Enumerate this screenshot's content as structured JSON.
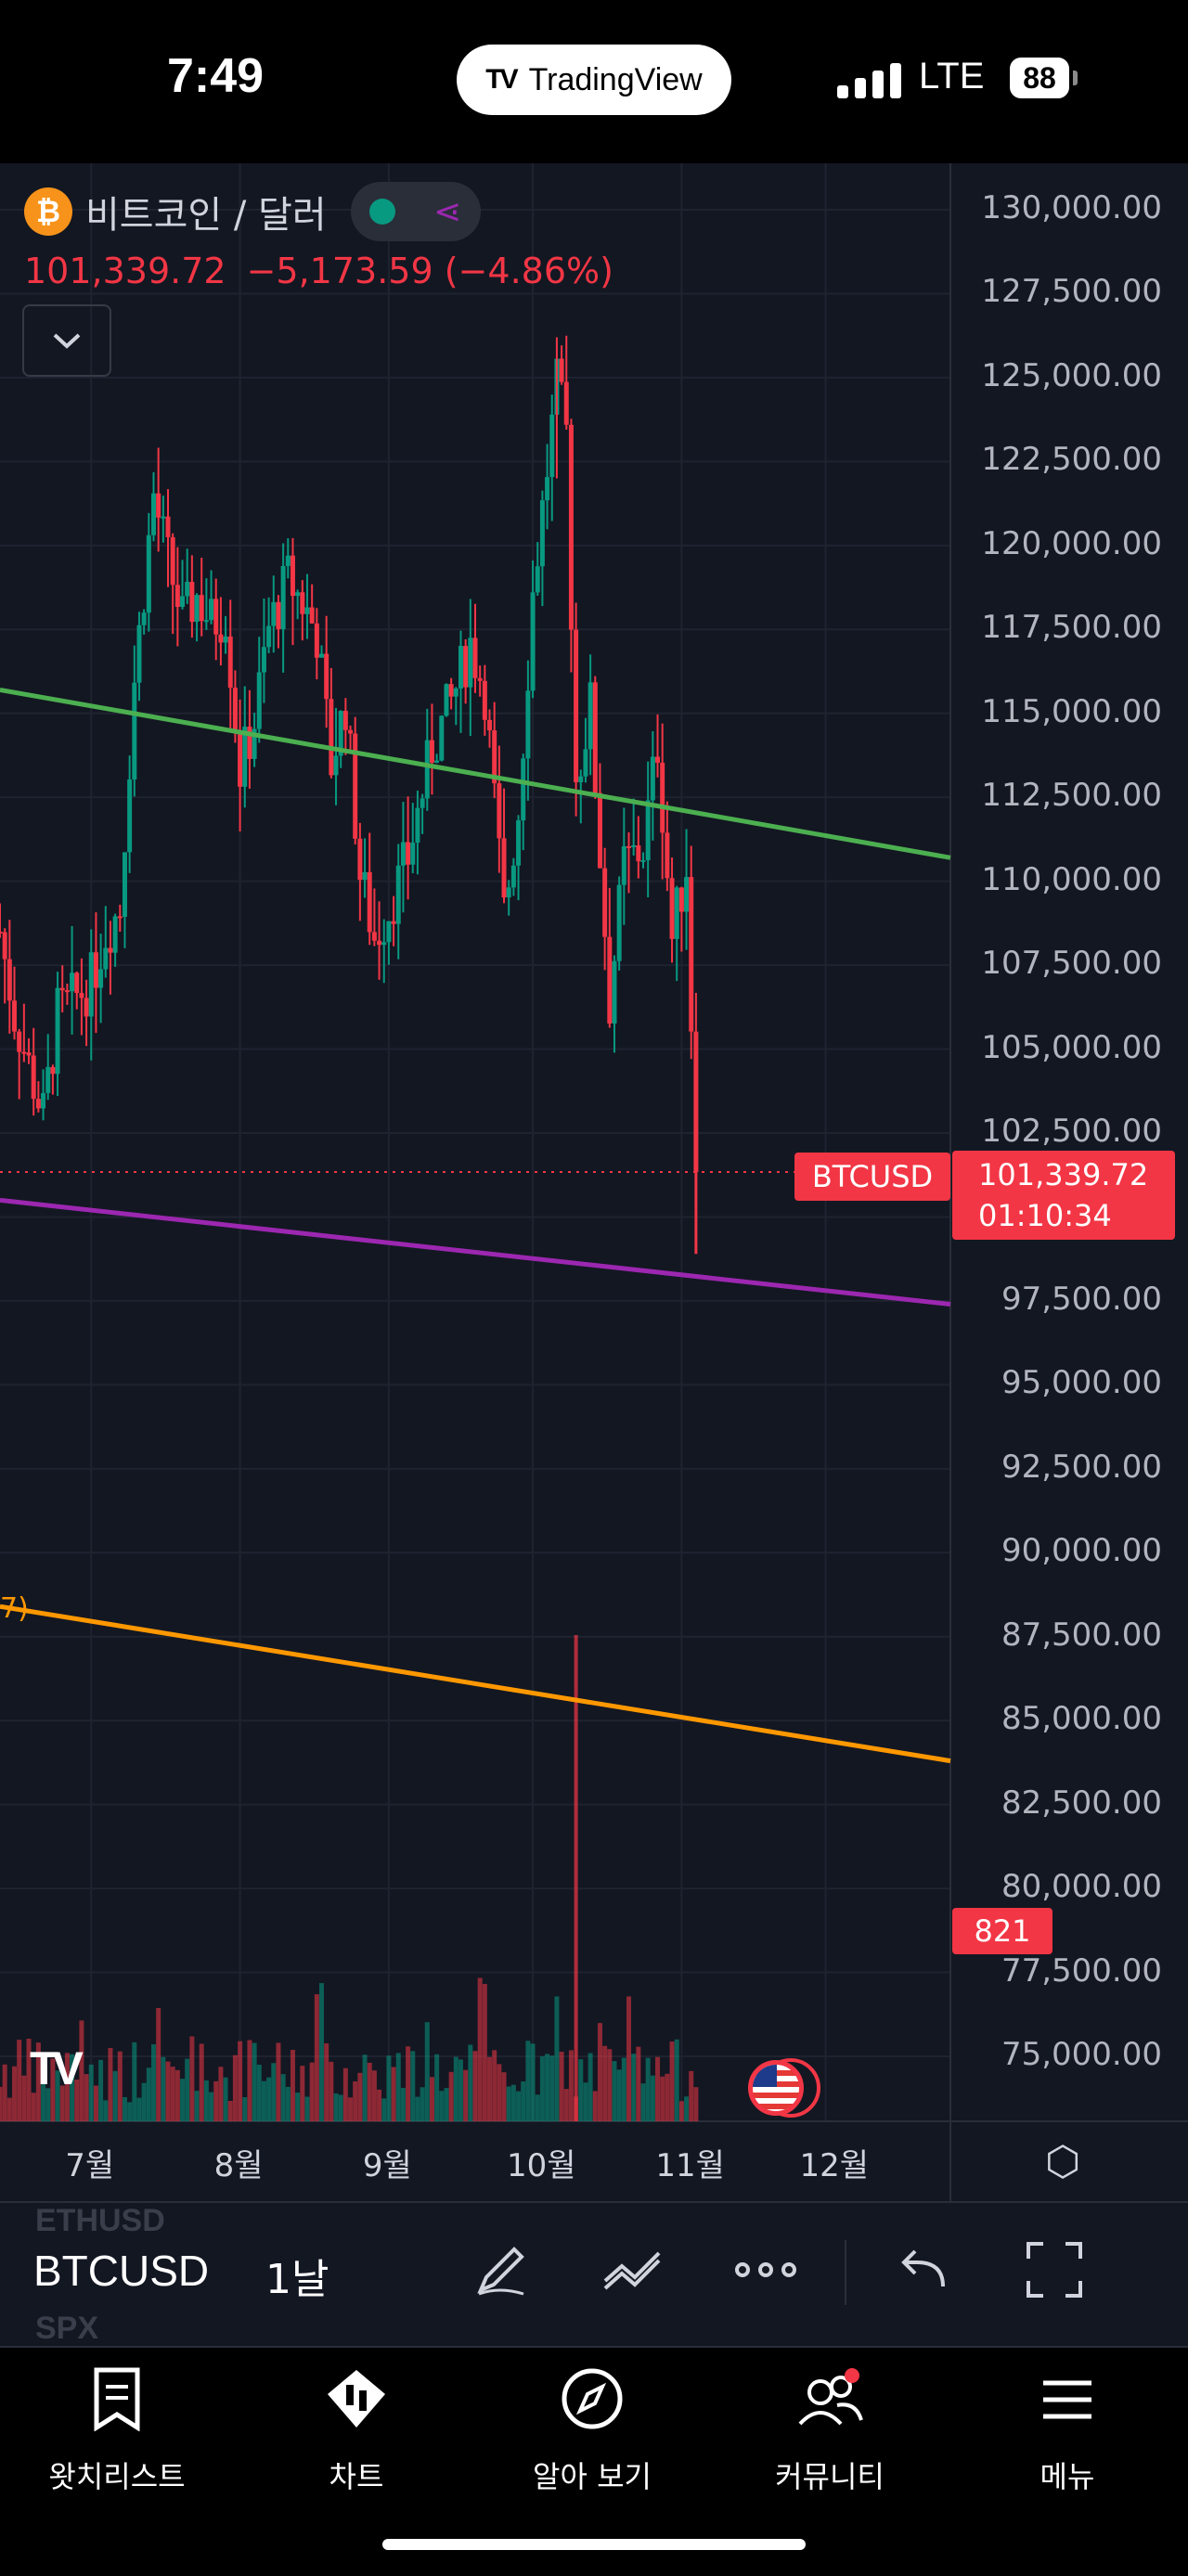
{
  "status_bar": {
    "time": "7:49",
    "app_pill": "TradingView",
    "app_logo": "TV",
    "network": "LTE",
    "battery": "88"
  },
  "legend": {
    "icon": "₿",
    "title": "비트코인 / 달러",
    "last": "101,339.72",
    "change": "−5,173.59",
    "change_pct": "(−4.86%)",
    "collapse_icon": "chevron-down-icon"
  },
  "price_axis": {
    "labels": [
      "130,000.00",
      "127,500.00",
      "125,000.00",
      "122,500.00",
      "120,000.00",
      "117,500.00",
      "115,000.00",
      "112,500.00",
      "110,000.00",
      "107,500.00",
      "105,000.00",
      "102,500.00",
      "97,500.00",
      "95,000.00",
      "92,500.00",
      "90,000.00",
      "87,500.00",
      "85,000.00",
      "82,500.00",
      "80,000.00",
      "77,500.00",
      "75,000.00"
    ]
  },
  "current_price": {
    "symbol": "BTCUSD",
    "price": "101,339.72",
    "countdown": "01:10:34"
  },
  "volume_tag": "821",
  "ma_label": "7)",
  "time_axis": [
    "7월",
    "8월",
    "9월",
    "10월",
    "11월",
    "12월"
  ],
  "chart_data": {
    "type": "candlestick",
    "symbol": "BTCUSD",
    "interval": "1날",
    "ylim": [
      73500,
      131000
    ],
    "x_range": [
      "2025-06-12",
      "2025-12-27"
    ],
    "closes": [
      [
        "2025-06-12",
        108500
      ],
      [
        "2025-06-15",
        106000
      ],
      [
        "2025-06-18",
        104500
      ],
      [
        "2025-06-21",
        103000
      ],
      [
        "2025-06-24",
        106000
      ],
      [
        "2025-07-01",
        107000
      ],
      [
        "2025-07-04",
        108500
      ],
      [
        "2025-07-07",
        109200
      ],
      [
        "2025-07-10",
        116000
      ],
      [
        "2025-07-14",
        121500
      ],
      [
        "2025-07-17",
        119500
      ],
      [
        "2025-07-20",
        117800
      ],
      [
        "2025-07-23",
        118500
      ],
      [
        "2025-07-26",
        117700
      ],
      [
        "2025-07-29",
        118000
      ],
      [
        "2025-08-01",
        113300
      ],
      [
        "2025-08-04",
        114800
      ],
      [
        "2025-08-07",
        117500
      ],
      [
        "2025-08-11",
        119000
      ],
      [
        "2025-08-14",
        118300
      ],
      [
        "2025-08-17",
        117400
      ],
      [
        "2025-08-20",
        113500
      ],
      [
        "2025-08-23",
        115300
      ],
      [
        "2025-08-26",
        110200
      ],
      [
        "2025-08-29",
        108300
      ],
      [
        "2025-09-01",
        109200
      ],
      [
        "2025-09-05",
        110700
      ],
      [
        "2025-09-10",
        114000
      ],
      [
        "2025-09-14",
        115300
      ],
      [
        "2025-09-18",
        117100
      ],
      [
        "2025-09-21",
        115700
      ],
      [
        "2025-09-25",
        109000
      ],
      [
        "2025-09-28",
        112100
      ],
      [
        "2025-10-01",
        118600
      ],
      [
        "2025-10-04",
        122300
      ],
      [
        "2025-10-06",
        124700
      ],
      [
        "2025-10-08",
        123300
      ],
      [
        "2025-10-10",
        113000
      ],
      [
        "2025-10-13",
        115200
      ],
      [
        "2025-10-17",
        106400
      ],
      [
        "2025-10-20",
        110500
      ],
      [
        "2025-10-24",
        111000
      ],
      [
        "2025-10-27",
        114100
      ],
      [
        "2025-10-30",
        108300
      ],
      [
        "2025-11-02",
        110500
      ],
      [
        "2025-11-04",
        101300
      ]
    ],
    "lows_and_highs": {
      "high": 126200,
      "low": 98900
    },
    "trendlines": [
      {
        "color": "#4caf50",
        "from": [
          "2025-06-12",
          115700
        ],
        "to": [
          "2025-12-27",
          110700
        ]
      },
      {
        "color": "#9c27b0",
        "from": [
          "2025-06-12",
          100500
        ],
        "to": [
          "2025-12-27",
          97400
        ]
      },
      {
        "color": "#ff9800",
        "from": [
          "2025-06-12",
          88400
        ],
        "to": [
          "2025-12-27",
          83800
        ]
      }
    ],
    "current_line": 101339.72,
    "colors": {
      "up": "#089981",
      "down": "#f23645",
      "background": "#131722",
      "grid": "#1f2330"
    }
  },
  "toolbar": {
    "ghost_above": "ETHUSD",
    "ghost_below": "SPX",
    "symbol": "BTCUSD",
    "interval": "1날",
    "icons": [
      "pen-icon",
      "line-tool-icon",
      "more-icon",
      "undo-icon",
      "fullscreen-icon"
    ]
  },
  "nav": [
    {
      "label": "왓치리스트",
      "icon": "bookmark-icon"
    },
    {
      "label": "차트",
      "icon": "candle-diamond-icon"
    },
    {
      "label": "알아 보기",
      "icon": "compass-icon"
    },
    {
      "label": "커뮤니티",
      "icon": "people-icon"
    },
    {
      "label": "메뉴",
      "icon": "menu-icon"
    }
  ]
}
